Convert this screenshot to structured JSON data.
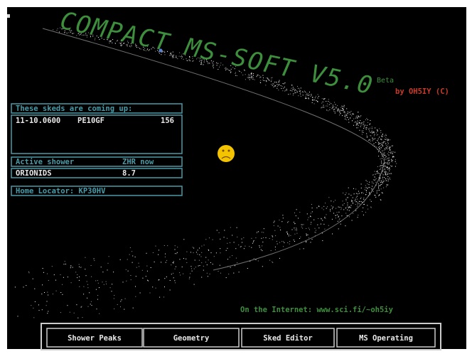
{
  "header": {
    "title": "COMPACT MS-SOFT V5.0",
    "badge": "Beta",
    "credit": "by OH5IY (C)"
  },
  "skeds": {
    "heading": "These skeds are coming up:",
    "rows": [
      [
        "11-10.0600",
        "PE10GF",
        "156"
      ]
    ]
  },
  "shower": {
    "heading": [
      "Active shower",
      "ZHR now"
    ],
    "row": [
      "ORIONIDS",
      "8.7"
    ]
  },
  "locator": "Home Locator: KP30HV",
  "internet": "On the Internet: www.sci.fi/~oh5iy",
  "buttons": [
    "Shower Peaks",
    "Geometry",
    "Sked Editor",
    "MS Operating"
  ]
}
